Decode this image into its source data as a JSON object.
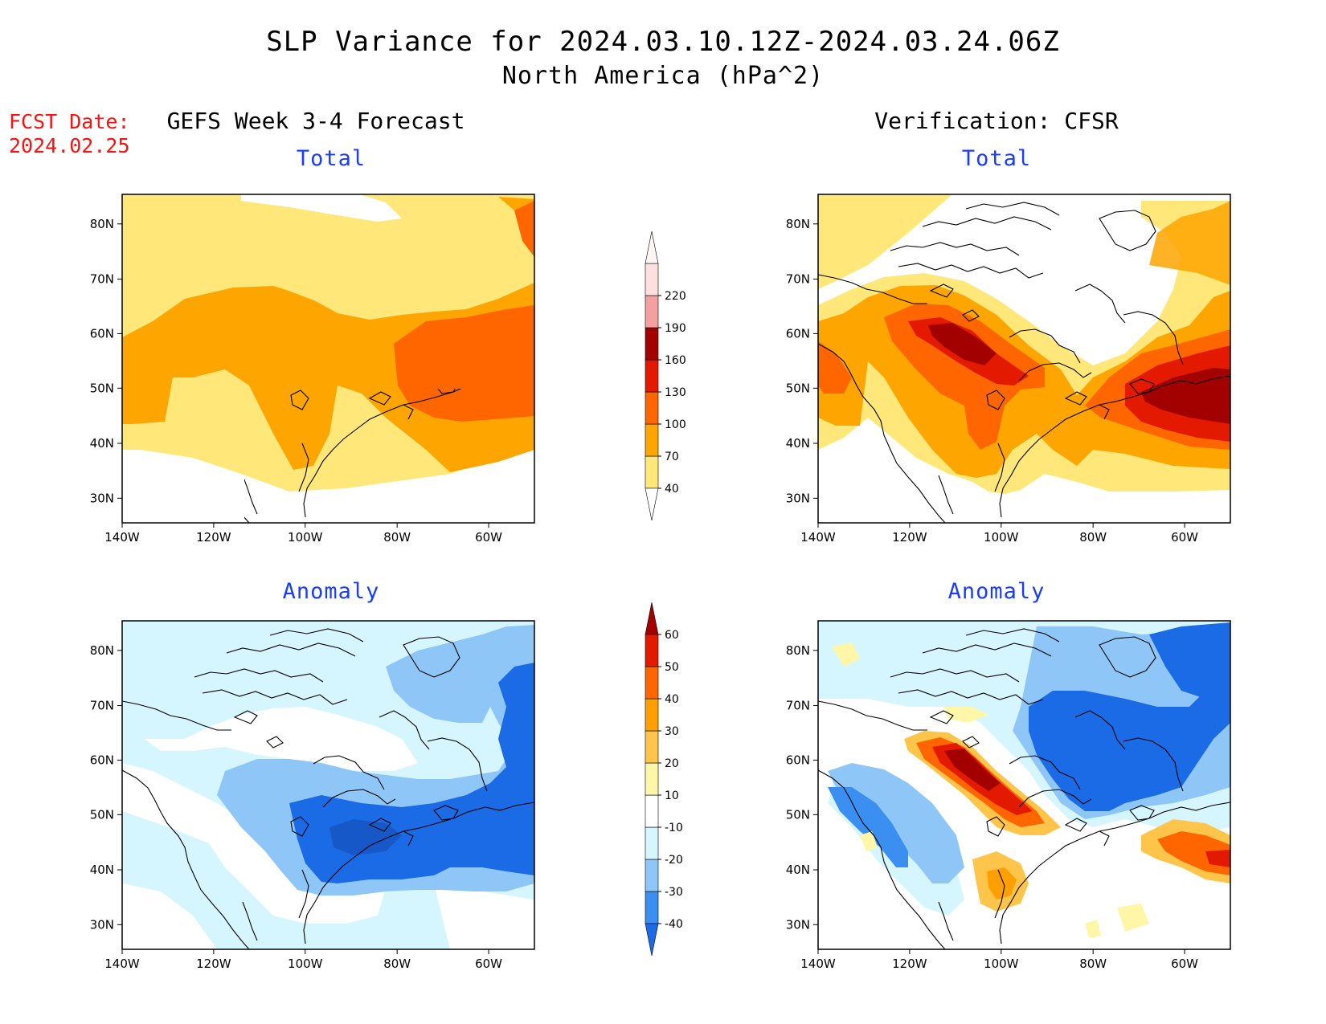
{
  "title": {
    "line1": "SLP Variance for 2024.03.10.12Z-2024.03.24.06Z",
    "line2": "North America (hPa^2)"
  },
  "fcst_date": {
    "label": "FCST Date:",
    "value": "2024.02.25"
  },
  "columns": {
    "left": "GEFS Week 3-4 Forecast",
    "right": "Verification: CFSR"
  },
  "panel_titles": {
    "total": "Total",
    "anomaly": "Anomaly"
  },
  "axes": {
    "lat_labels": [
      "80N",
      "70N",
      "60N",
      "50N",
      "40N",
      "30N"
    ],
    "lon_labels": [
      "140W",
      "120W",
      "100W",
      "80W",
      "60W"
    ]
  },
  "colorbars": {
    "total": {
      "levels": [
        "40",
        "70",
        "100",
        "130",
        "160",
        "190",
        "220"
      ],
      "colors": [
        "#ffe77a",
        "#ffa500",
        "#ff6600",
        "#e31a00",
        "#a30000",
        "#f4a0a0",
        "#fde0dd"
      ]
    },
    "anomaly": {
      "levels": [
        "-40",
        "-30",
        "-20",
        "-10",
        "10",
        "20",
        "30",
        "40",
        "50",
        "60"
      ],
      "colors": [
        "#1b6be6",
        "#3a8ff0",
        "#8ec7f7",
        "#d6f6ff",
        "#ffffff",
        "#fff6a8",
        "#ffc44a",
        "#ffa000",
        "#ff6600",
        "#e31a00",
        "#a30000"
      ]
    }
  },
  "colors": {
    "title_blue": "#1a3cff",
    "fcst_red": "#ff1010"
  }
}
